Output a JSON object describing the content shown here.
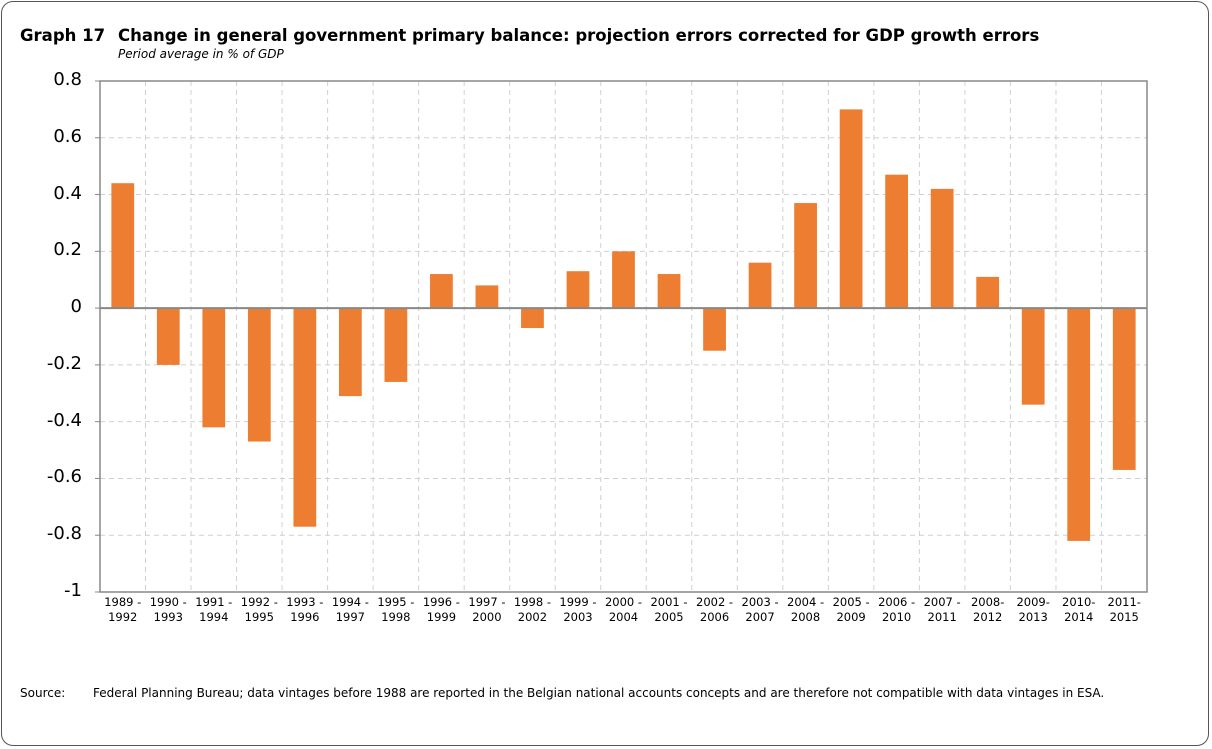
{
  "chart_data": {
    "type": "bar",
    "label": "Graph 17",
    "title": "Change in general government primary balance: projection errors corrected for GDP growth errors",
    "subtitle": "Period average in % of GDP",
    "categories": [
      "1989 -\n1992",
      "1990 -\n1993",
      "1991 -\n1994",
      "1992 -\n1995",
      "1993 -\n1996",
      "1994 -\n1997",
      "1995 -\n1998",
      "1996 -\n1999",
      "1997 -\n2000",
      "1998 -\n2002",
      "1999 -\n2003",
      "2000 -\n2004",
      "2001 -\n2005",
      "2002 -\n2006",
      "2003 -\n2007",
      "2004 -\n2008",
      "2005 -\n2009",
      "2006 -\n2010",
      "2007 -\n2011",
      "2008-\n2012",
      "2009-\n2013",
      "2010-\n2014",
      "2011-\n2015"
    ],
    "values": [
      0.44,
      -0.2,
      -0.42,
      -0.47,
      -0.77,
      -0.31,
      -0.26,
      0.12,
      0.08,
      -0.07,
      0.13,
      0.2,
      0.12,
      -0.15,
      0.16,
      0.37,
      0.7,
      0.47,
      0.42,
      0.11,
      -0.34,
      -0.82,
      -0.57
    ],
    "color": "#ed7d31",
    "ylim": [
      -1,
      0.8
    ],
    "yticks": [
      -1,
      -0.8,
      -0.6,
      -0.4,
      -0.2,
      0,
      0.2,
      0.4,
      0.6,
      0.8
    ],
    "grid": true,
    "source_label": "Source:",
    "source": "Federal Planning Bureau; data vintages before 1988 are reported in the Belgian national accounts concepts and are therefore not compatible with data vintages in ESA."
  }
}
